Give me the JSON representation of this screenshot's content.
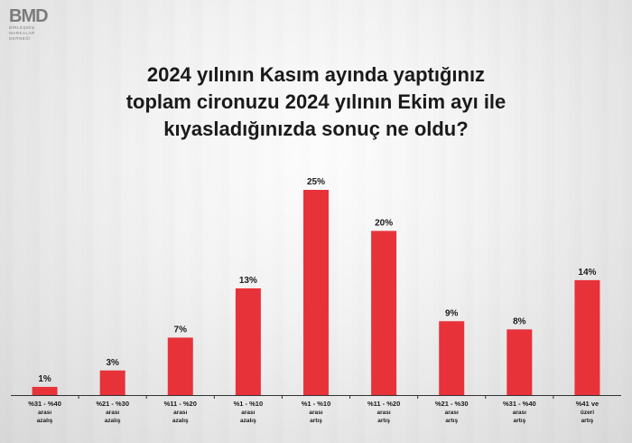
{
  "logo": {
    "mark": "BMD",
    "lines": [
      "BİRLEŞMİŞ",
      "MARKALAR",
      "DERNEĞİ"
    ]
  },
  "title_lines": [
    "2024 yılının Kasım ayında yaptığınız",
    "toplam cironuzu 2024 yılının Ekim ayı ile",
    "kıyasladığınızda sonuç ne oldu?"
  ],
  "chart_data": {
    "type": "bar",
    "title": "2024 yılının Kasım ayında yaptığınız toplam cironuzu 2024 yılının Ekim ayı ile kıyasladığınızda sonuç ne oldu?",
    "categories": [
      [
        "%31 - %40",
        "arası",
        "azalış"
      ],
      [
        "%21 - %30",
        "arası",
        "azalış"
      ],
      [
        "%11 - %20",
        "arası",
        "azalış"
      ],
      [
        "%1 - %10",
        "arası",
        "azalış"
      ],
      [
        "%1 - %10",
        "arası",
        "artış"
      ],
      [
        "%11 - %20",
        "arası",
        "artış"
      ],
      [
        "%21 - %30",
        "arası",
        "artış"
      ],
      [
        "%31 - %40",
        "arası",
        "artış"
      ],
      [
        "%41 ve",
        "üzeri",
        "artış"
      ]
    ],
    "values": [
      1,
      3,
      7,
      13,
      25,
      20,
      9,
      8,
      14
    ],
    "value_labels": [
      "1%",
      "3%",
      "7%",
      "13%",
      "25%",
      "20%",
      "9%",
      "8%",
      "14%"
    ],
    "ylim": [
      0,
      25
    ],
    "grid": false,
    "legend": "none",
    "colors": {
      "bar": "#e8323a",
      "label": "#1a1a1a",
      "axis": "#333333"
    }
  }
}
